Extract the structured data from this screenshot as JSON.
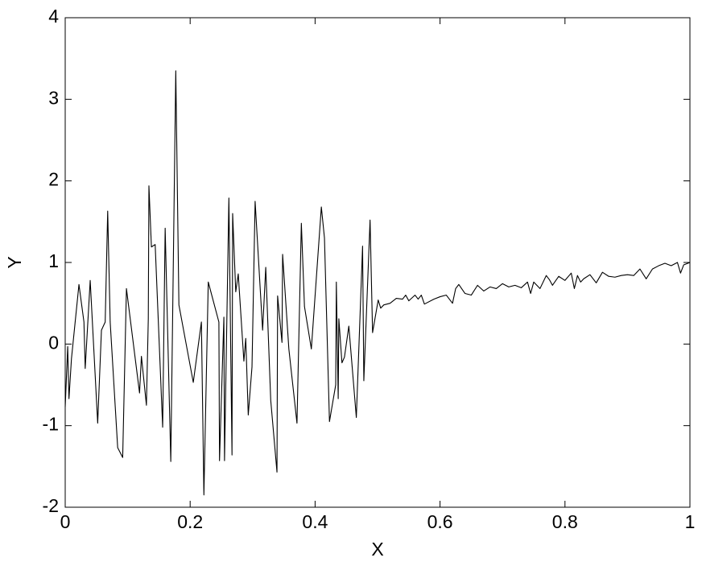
{
  "chart_data": {
    "type": "line",
    "x_label": "X",
    "y_label": "Y",
    "x": [
      0,
      0.004,
      0.006,
      0.01,
      0.022,
      0.03,
      0.032,
      0.04,
      0.052,
      0.058,
      0.064,
      0.068,
      0.072,
      0.084,
      0.092,
      0.098,
      0.119,
      0.122,
      0.13,
      0.133,
      0.134,
      0.138,
      0.144,
      0.156,
      0.16,
      0.169,
      0.177,
      0.182,
      0.205,
      0.218,
      0.222,
      0.229,
      0.246,
      0.247,
      0.254,
      0.255,
      0.262,
      0.267,
      0.268,
      0.273,
      0.277,
      0.286,
      0.289,
      0.293,
      0.299,
      0.304,
      0.316,
      0.321,
      0.329,
      0.339,
      0.34,
      0.347,
      0.348,
      0.358,
      0.371,
      0.378,
      0.383,
      0.394,
      0.41,
      0.415,
      0.423,
      0.433,
      0.434,
      0.437,
      0.438,
      0.443,
      0.447,
      0.454,
      0.466,
      0.476,
      0.478,
      0.488,
      0.492,
      0.501,
      0.505,
      0.51,
      0.52,
      0.53,
      0.54,
      0.545,
      0.55,
      0.56,
      0.565,
      0.57,
      0.575,
      0.59,
      0.6,
      0.61,
      0.62,
      0.625,
      0.63,
      0.64,
      0.65,
      0.66,
      0.67,
      0.68,
      0.69,
      0.7,
      0.71,
      0.72,
      0.73,
      0.74,
      0.745,
      0.75,
      0.76,
      0.77,
      0.775,
      0.78,
      0.79,
      0.8,
      0.81,
      0.815,
      0.82,
      0.825,
      0.83,
      0.84,
      0.85,
      0.86,
      0.87,
      0.88,
      0.89,
      0.9,
      0.91,
      0.92,
      0.93,
      0.94,
      0.95,
      0.96,
      0.97,
      0.98,
      0.985,
      0.99,
      1.0
    ],
    "series": [
      {
        "color": "#000000",
        "values": [
          -0.77,
          -0.03,
          -0.67,
          -0.18,
          0.73,
          0.27,
          -0.3,
          0.78,
          -0.97,
          0.17,
          0.27,
          1.63,
          0.27,
          -1.27,
          -1.39,
          0.68,
          -0.6,
          -0.15,
          -0.75,
          0.31,
          1.94,
          1.19,
          1.22,
          -1.02,
          1.42,
          -1.44,
          3.35,
          0.48,
          -0.47,
          0.27,
          -1.85,
          0.76,
          0.27,
          -1.43,
          0.33,
          -1.43,
          1.79,
          -1.36,
          1.6,
          0.64,
          0.86,
          -0.21,
          0.07,
          -0.87,
          -0.28,
          1.75,
          0.17,
          0.94,
          -0.69,
          -1.57,
          0.59,
          0.02,
          1.1,
          -0.06,
          -0.97,
          1.48,
          0.46,
          -0.06,
          1.68,
          1.3,
          -0.95,
          -0.5,
          0.76,
          -0.67,
          0.31,
          -0.23,
          -0.16,
          0.22,
          -0.9,
          1.2,
          -0.45,
          1.52,
          0.14,
          0.54,
          0.44,
          0.48,
          0.5,
          0.56,
          0.55,
          0.6,
          0.53,
          0.6,
          0.55,
          0.6,
          0.49,
          0.55,
          0.58,
          0.6,
          0.5,
          0.68,
          0.73,
          0.62,
          0.6,
          0.72,
          0.65,
          0.7,
          0.68,
          0.74,
          0.7,
          0.72,
          0.69,
          0.76,
          0.62,
          0.76,
          0.68,
          0.84,
          0.79,
          0.72,
          0.83,
          0.78,
          0.87,
          0.68,
          0.84,
          0.76,
          0.8,
          0.85,
          0.75,
          0.88,
          0.83,
          0.82,
          0.84,
          0.85,
          0.84,
          0.92,
          0.8,
          0.92,
          0.96,
          0.99,
          0.96,
          1.0,
          0.87,
          0.97,
          1.0
        ]
      }
    ],
    "xlim": [
      0,
      1
    ],
    "ylim": [
      -2,
      4
    ],
    "xticks": [
      0,
      0.2,
      0.4,
      0.6,
      0.8,
      1
    ],
    "yticks": [
      -2,
      -1,
      0,
      1,
      2,
      3,
      4
    ]
  }
}
